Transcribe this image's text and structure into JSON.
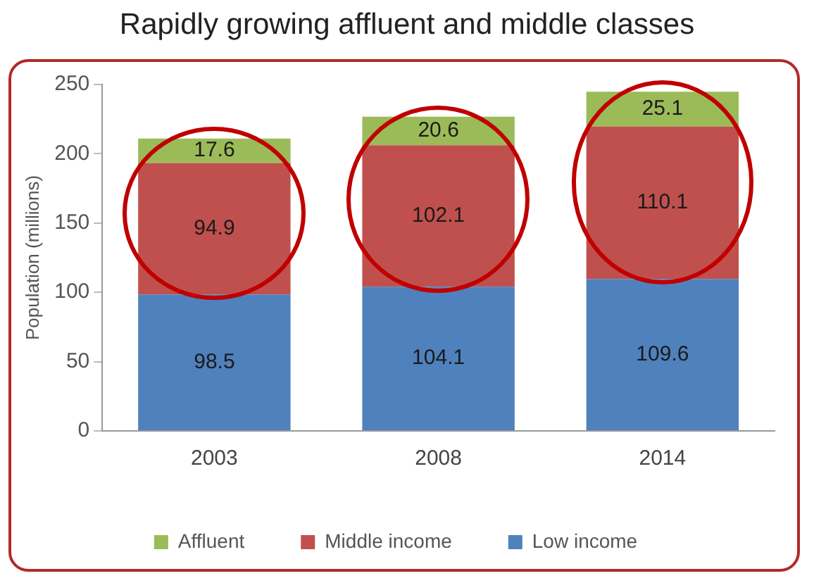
{
  "chart_data": {
    "type": "bar",
    "title": "Rapidly growing affluent and middle classes",
    "ylabel": "Population (millions)",
    "categories": [
      "2003",
      "2008",
      "2014"
    ],
    "stacked": true,
    "series": [
      {
        "name": "Low income",
        "color": "#4f81bd",
        "values": [
          98.5,
          104.1,
          109.6
        ]
      },
      {
        "name": "Middle income",
        "color": "#c0504d",
        "values": [
          94.9,
          102.1,
          110.1
        ]
      },
      {
        "name": "Affluent",
        "color": "#9bbb59",
        "values": [
          17.6,
          20.6,
          25.1
        ]
      }
    ],
    "ylim": [
      0,
      250
    ],
    "yticks": [
      0,
      50,
      100,
      150,
      200,
      250
    ],
    "grid": false,
    "legend": "bottom",
    "data_labels": true
  }
}
